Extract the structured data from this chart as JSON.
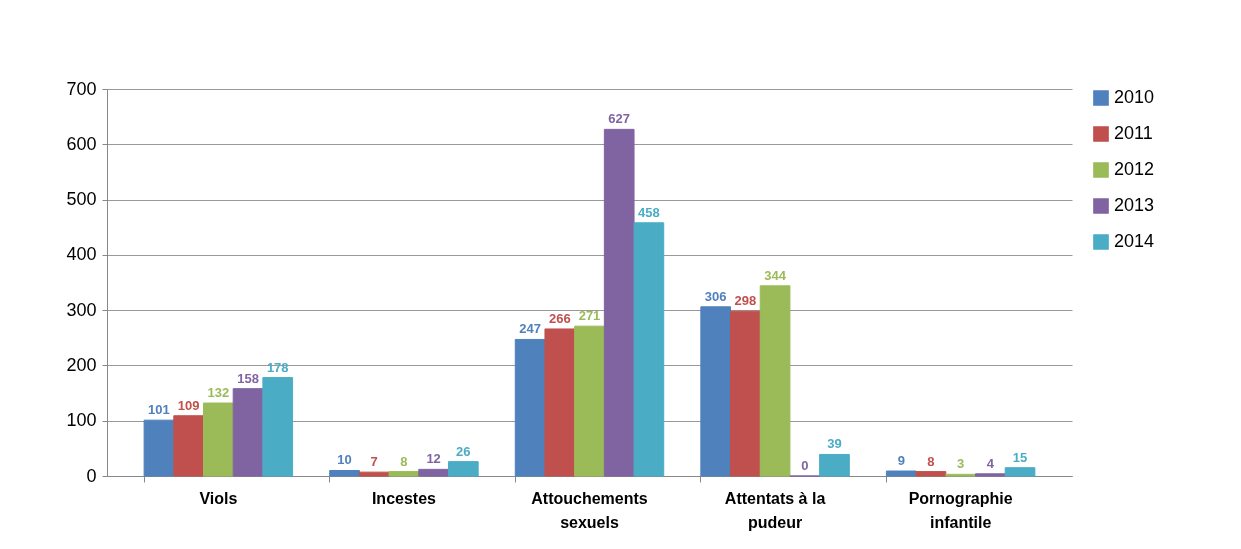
{
  "chart_data": {
    "type": "bar",
    "categories": [
      "Viols",
      "Incestes",
      "Attouchements sexuels",
      "Attentats à la pudeur",
      "Pornographie infantile"
    ],
    "series": [
      {
        "name": "2010",
        "color": "#4f81bd",
        "values": [
          101,
          10,
          247,
          306,
          9
        ]
      },
      {
        "name": "2011",
        "color": "#c0504d",
        "values": [
          109,
          7,
          266,
          298,
          8
        ]
      },
      {
        "name": "2012",
        "color": "#9bbb59",
        "values": [
          132,
          8,
          271,
          344,
          3
        ]
      },
      {
        "name": "2013",
        "color": "#8064a2",
        "values": [
          158,
          12,
          627,
          0,
          4
        ]
      },
      {
        "name": "2014",
        "color": "#4bacc6",
        "values": [
          178,
          26,
          458,
          39,
          15
        ]
      }
    ],
    "ylim": [
      0,
      700
    ],
    "yticks": [
      0,
      100,
      200,
      300,
      400,
      500,
      600,
      700
    ],
    "grid": "y",
    "legend": "right",
    "data_labels": true
  }
}
